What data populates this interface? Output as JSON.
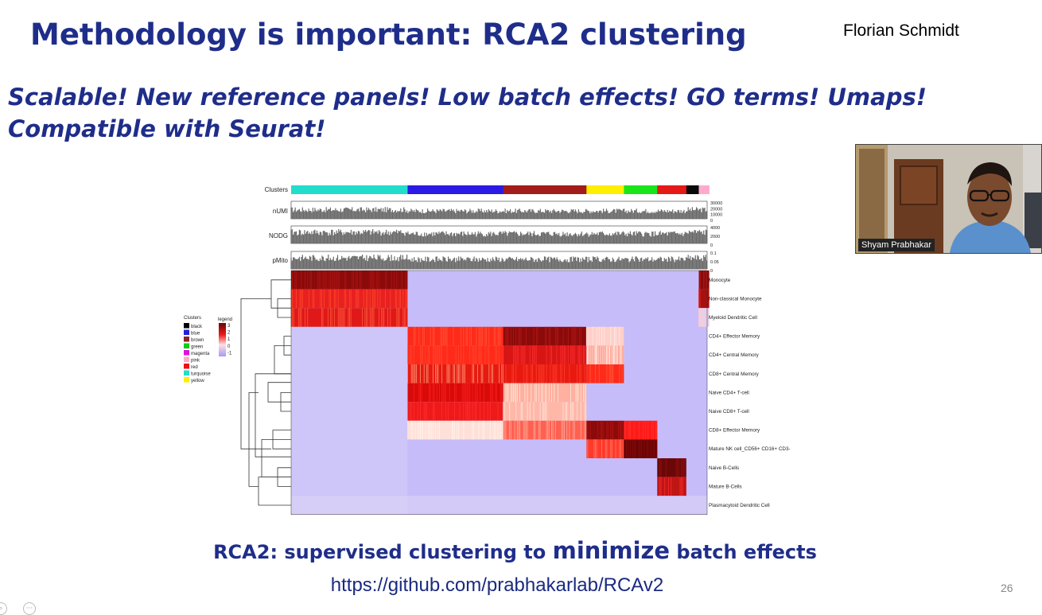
{
  "slide": {
    "title": "Methodology is important: RCA2 clustering",
    "author": "Florian Schmidt",
    "subtitle": "Scalable! New reference panels! Low batch effects! GO terms! Umaps! Compatible with Seurat!",
    "caption_pre": "RCA2: supervised clustering to ",
    "caption_big": "minimize",
    "caption_post": " batch effects",
    "url": "https://github.com/prabhakarlab/RCAv2",
    "page_number": "26"
  },
  "video": {
    "participant_name": "Shyam Prabhakar"
  },
  "figure": {
    "track_labels": [
      "Clusters",
      "nUMI",
      "NODG",
      "pMito"
    ],
    "numi_ticks": [
      "30000",
      "20000",
      "10000",
      "0"
    ],
    "nodg_ticks": [
      "4000",
      "2000",
      "0"
    ],
    "pmito_ticks": [
      "0.1",
      "0.05",
      "0"
    ],
    "cluster_colors": [
      "#22ddcc",
      "#2b1ae6",
      "#a31c1c",
      "#ffee00",
      "#19e619",
      "#e61919",
      "#0a0a0a",
      "#ffaacc",
      "#dd11dd"
    ],
    "cluster_fractions": [
      0.28,
      0.23,
      0.2,
      0.09,
      0.08,
      0.07,
      0.03,
      0.025,
      0.01
    ],
    "legend_clusters_title": "Clusters",
    "legend_clusters": [
      {
        "name": "black",
        "color": "#000000"
      },
      {
        "name": "blue",
        "color": "#2222dd"
      },
      {
        "name": "brown",
        "color": "#8b2323"
      },
      {
        "name": "green",
        "color": "#11cc11"
      },
      {
        "name": "magenta",
        "color": "#dd11dd"
      },
      {
        "name": "pink",
        "color": "#ffaacc"
      },
      {
        "name": "red",
        "color": "#ee1111"
      },
      {
        "name": "turquoise",
        "color": "#22ddcc"
      },
      {
        "name": "yellow",
        "color": "#ffee00"
      }
    ],
    "legend_scale_title": "legend",
    "legend_scale_ticks": [
      "3",
      "2",
      "1",
      "0",
      "-1"
    ],
    "row_labels": [
      "Monocyte",
      "Non-classical Monocyte",
      "Myeloid Dendritic Cell",
      "CD4+ Effector Memory",
      "CD4+ Central Memory",
      "CD8+ Central Memory",
      "Naive CD4+ T-cell",
      "Naive CD8+ T-cell",
      "CD8+ Effector Memory",
      "Mature NK cell_CD56+ CD16+ CD3-",
      "Naive B-Cells",
      "Mature B-Cells",
      "Plasmacytoid Dendritic Cell"
    ]
  }
}
